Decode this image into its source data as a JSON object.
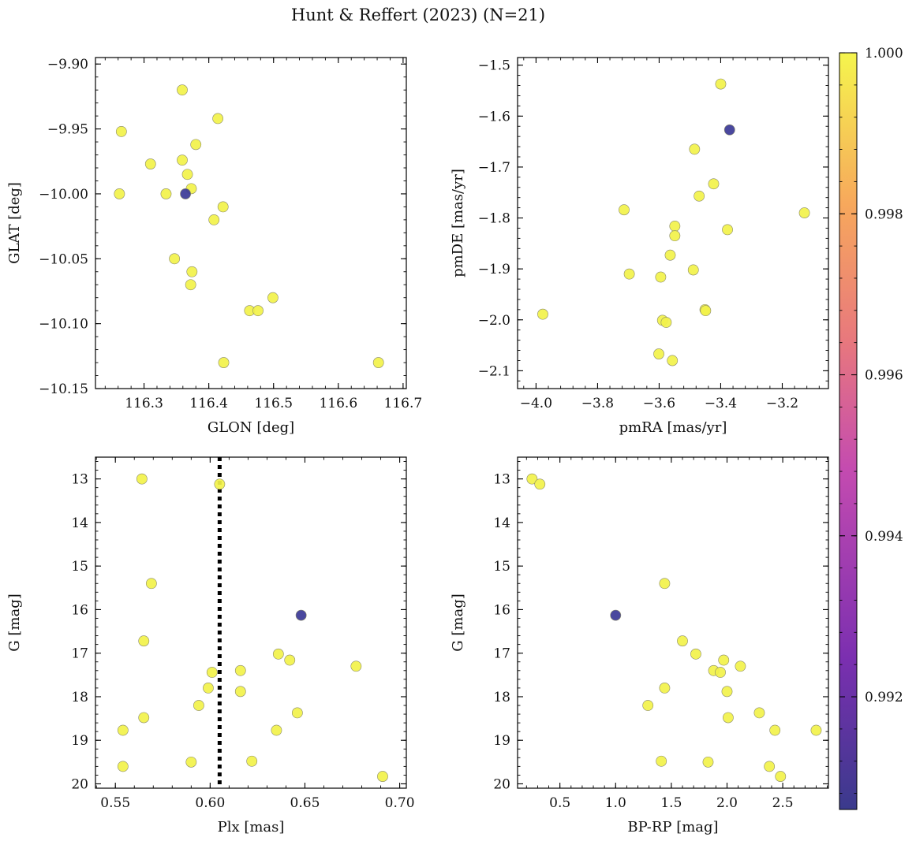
{
  "figure": {
    "title": "Hunt & Reffert (2023) (N=21)"
  },
  "colorbar": {
    "min": 0.9906,
    "max": 1.0,
    "ticks": [
      0.992,
      0.994,
      0.996,
      0.998,
      1.0
    ],
    "tick_labels": [
      "0.992",
      "0.994",
      "0.996",
      "0.998",
      "1.000"
    ],
    "colormap": "plasma",
    "colors": [
      "#0d0887",
      "#7e03a8",
      "#cc4778",
      "#f89540",
      "#f0f921"
    ]
  },
  "chart_data": [
    {
      "id": "glon-glat",
      "type": "scatter",
      "xlabel": "GLON [deg]",
      "ylabel": "GLAT [deg]",
      "xlim": [
        116.225,
        116.705
      ],
      "ylim": [
        -10.15,
        -9.895
      ],
      "invert_y": false,
      "xticks": [
        116.3,
        116.4,
        116.5,
        116.6,
        116.7
      ],
      "xtick_labels": [
        "116.3",
        "116.4",
        "116.5",
        "116.6",
        "116.7"
      ],
      "yticks": [
        -9.9,
        -9.95,
        -10.0,
        -10.05,
        -10.1,
        -10.15
      ],
      "ytick_labels": [
        "−9.90",
        "−9.95",
        "−10.00",
        "−10.05",
        "−10.10",
        "−10.15"
      ],
      "x_minor_step": 0.02,
      "y_minor_step": 0.01,
      "points": [
        {
          "x": 116.262,
          "y": -10.0,
          "c": 1.0
        },
        {
          "x": 116.265,
          "y": -9.952,
          "c": 1.0
        },
        {
          "x": 116.31,
          "y": -9.977,
          "c": 1.0
        },
        {
          "x": 116.334,
          "y": -10.0,
          "c": 1.0
        },
        {
          "x": 116.347,
          "y": -10.05,
          "c": 1.0
        },
        {
          "x": 116.359,
          "y": -9.92,
          "c": 1.0
        },
        {
          "x": 116.359,
          "y": -9.974,
          "c": 1.0
        },
        {
          "x": 116.367,
          "y": -9.985,
          "c": 1.0
        },
        {
          "x": 116.373,
          "y": -9.996,
          "c": 1.0
        },
        {
          "x": 116.374,
          "y": -10.06,
          "c": 1.0
        },
        {
          "x": 116.372,
          "y": -10.07,
          "c": 1.0
        },
        {
          "x": 116.38,
          "y": -9.962,
          "c": 1.0
        },
        {
          "x": 116.408,
          "y": -10.02,
          "c": 1.0
        },
        {
          "x": 116.414,
          "y": -9.942,
          "c": 1.0
        },
        {
          "x": 116.422,
          "y": -10.01,
          "c": 1.0
        },
        {
          "x": 116.423,
          "y": -10.13,
          "c": 1.0
        },
        {
          "x": 116.463,
          "y": -10.09,
          "c": 1.0
        },
        {
          "x": 116.476,
          "y": -10.09,
          "c": 1.0
        },
        {
          "x": 116.499,
          "y": -10.08,
          "c": 1.0
        },
        {
          "x": 116.662,
          "y": -10.13,
          "c": 1.0
        },
        {
          "x": 116.364,
          "y": -10.0,
          "c": 0.9906
        }
      ]
    },
    {
      "id": "pmra-pmde",
      "type": "scatter",
      "xlabel": "pmRA [mas/yr]",
      "ylabel": "pmDE [mas/yr]",
      "xlim": [
        -4.06,
        -3.05
      ],
      "ylim": [
        -2.135,
        -1.485
      ],
      "invert_y": false,
      "xticks": [
        -4.0,
        -3.8,
        -3.6,
        -3.4,
        -3.2
      ],
      "xtick_labels": [
        "−4.0",
        "−3.8",
        "−3.6",
        "−3.4",
        "−3.2"
      ],
      "yticks": [
        -1.5,
        -1.6,
        -1.7,
        -1.8,
        -1.9,
        -2.0,
        -2.1
      ],
      "ytick_labels": [
        "−1.5",
        "−1.6",
        "−1.7",
        "−1.8",
        "−1.9",
        "−2.0",
        "−2.1"
      ],
      "x_minor_step": 0.04,
      "y_minor_step": 0.02,
      "points": [
        {
          "x": -3.4,
          "y": -1.537,
          "c": 1.0
        },
        {
          "x": -3.485,
          "y": -1.665,
          "c": 1.0
        },
        {
          "x": -3.423,
          "y": -1.733,
          "c": 1.0
        },
        {
          "x": -3.47,
          "y": -1.757,
          "c": 1.0
        },
        {
          "x": -3.714,
          "y": -1.784,
          "c": 1.0
        },
        {
          "x": -3.128,
          "y": -1.79,
          "c": 1.0
        },
        {
          "x": -3.549,
          "y": -1.816,
          "c": 1.0
        },
        {
          "x": -3.378,
          "y": -1.823,
          "c": 1.0
        },
        {
          "x": -3.549,
          "y": -1.835,
          "c": 1.0
        },
        {
          "x": -3.564,
          "y": -1.873,
          "c": 1.0
        },
        {
          "x": -3.489,
          "y": -1.902,
          "c": 1.0
        },
        {
          "x": -3.697,
          "y": -1.91,
          "c": 1.0
        },
        {
          "x": -3.595,
          "y": -1.916,
          "c": 1.0
        },
        {
          "x": -3.451,
          "y": -1.98,
          "c": 1.0
        },
        {
          "x": -3.449,
          "y": -1.982,
          "c": 1.0
        },
        {
          "x": -3.978,
          "y": -1.989,
          "c": 1.0
        },
        {
          "x": -3.589,
          "y": -2.001,
          "c": 1.0
        },
        {
          "x": -3.577,
          "y": -2.005,
          "c": 1.0
        },
        {
          "x": -3.601,
          "y": -2.067,
          "c": 1.0
        },
        {
          "x": -3.557,
          "y": -2.08,
          "c": 1.0
        },
        {
          "x": -3.371,
          "y": -1.627,
          "c": 0.9906
        }
      ]
    },
    {
      "id": "plx-g",
      "type": "scatter",
      "xlabel": "Plx [mas]",
      "ylabel": "G [mag]",
      "xlim": [
        0.5395,
        0.7035
      ],
      "ylim": [
        12.5,
        20.1
      ],
      "invert_y": true,
      "xticks": [
        0.55,
        0.6,
        0.65,
        0.7
      ],
      "xtick_labels": [
        "0.55",
        "0.60",
        "0.65",
        "0.70"
      ],
      "yticks": [
        13,
        14,
        15,
        16,
        17,
        18,
        19,
        20
      ],
      "ytick_labels": [
        "13",
        "14",
        "15",
        "16",
        "17",
        "18",
        "19",
        "20"
      ],
      "x_minor_step": 0.01,
      "y_minor_step": 0.2,
      "vline": {
        "x": 0.605,
        "style": "dotted"
      },
      "points": [
        {
          "x": 0.564,
          "y": 13.0,
          "c": 1.0
        },
        {
          "x": 0.605,
          "y": 13.12,
          "c": 1.0
        },
        {
          "x": 0.569,
          "y": 15.4,
          "c": 1.0
        },
        {
          "x": 0.565,
          "y": 16.72,
          "c": 1.0
        },
        {
          "x": 0.636,
          "y": 17.02,
          "c": 1.0
        },
        {
          "x": 0.642,
          "y": 17.16,
          "c": 1.0
        },
        {
          "x": 0.677,
          "y": 17.3,
          "c": 1.0
        },
        {
          "x": 0.616,
          "y": 17.4,
          "c": 1.0
        },
        {
          "x": 0.601,
          "y": 17.44,
          "c": 1.0
        },
        {
          "x": 0.599,
          "y": 17.8,
          "c": 1.0
        },
        {
          "x": 0.616,
          "y": 17.88,
          "c": 1.0
        },
        {
          "x": 0.594,
          "y": 18.2,
          "c": 1.0
        },
        {
          "x": 0.646,
          "y": 18.37,
          "c": 1.0
        },
        {
          "x": 0.565,
          "y": 18.48,
          "c": 1.0
        },
        {
          "x": 0.554,
          "y": 18.77,
          "c": 1.0
        },
        {
          "x": 0.635,
          "y": 18.77,
          "c": 1.0
        },
        {
          "x": 0.59,
          "y": 19.5,
          "c": 1.0
        },
        {
          "x": 0.622,
          "y": 19.48,
          "c": 1.0
        },
        {
          "x": 0.554,
          "y": 19.6,
          "c": 1.0
        },
        {
          "x": 0.691,
          "y": 19.83,
          "c": 1.0
        },
        {
          "x": 0.648,
          "y": 16.13,
          "c": 0.9906
        }
      ]
    },
    {
      "id": "bprp-g",
      "type": "scatter",
      "xlabel": "BP-RP [mag]",
      "ylabel": "G [mag]",
      "xlim": [
        0.12,
        2.91
      ],
      "ylim": [
        12.5,
        20.1
      ],
      "invert_y": true,
      "xticks": [
        0.5,
        1.0,
        1.5,
        2.0,
        2.5
      ],
      "xtick_labels": [
        "0.5",
        "1.0",
        "1.5",
        "2.0",
        "2.5"
      ],
      "yticks": [
        13,
        14,
        15,
        16,
        17,
        18,
        19,
        20
      ],
      "ytick_labels": [
        "13",
        "14",
        "15",
        "16",
        "17",
        "18",
        "19",
        "20"
      ],
      "x_minor_step": 0.1,
      "y_minor_step": 0.2,
      "points": [
        {
          "x": 0.25,
          "y": 13.0,
          "c": 1.0
        },
        {
          "x": 0.32,
          "y": 13.12,
          "c": 1.0
        },
        {
          "x": 1.44,
          "y": 15.4,
          "c": 1.0
        },
        {
          "x": 1.6,
          "y": 16.72,
          "c": 1.0
        },
        {
          "x": 1.72,
          "y": 17.02,
          "c": 1.0
        },
        {
          "x": 1.97,
          "y": 17.16,
          "c": 1.0
        },
        {
          "x": 2.12,
          "y": 17.3,
          "c": 1.0
        },
        {
          "x": 1.88,
          "y": 17.4,
          "c": 1.0
        },
        {
          "x": 1.94,
          "y": 17.44,
          "c": 1.0
        },
        {
          "x": 1.44,
          "y": 17.8,
          "c": 1.0
        },
        {
          "x": 2.0,
          "y": 17.88,
          "c": 1.0
        },
        {
          "x": 1.29,
          "y": 18.2,
          "c": 1.0
        },
        {
          "x": 2.29,
          "y": 18.37,
          "c": 1.0
        },
        {
          "x": 2.01,
          "y": 18.48,
          "c": 1.0
        },
        {
          "x": 2.43,
          "y": 18.77,
          "c": 1.0
        },
        {
          "x": 2.8,
          "y": 18.77,
          "c": 1.0
        },
        {
          "x": 1.41,
          "y": 19.48,
          "c": 1.0
        },
        {
          "x": 1.83,
          "y": 19.5,
          "c": 1.0
        },
        {
          "x": 2.38,
          "y": 19.6,
          "c": 1.0
        },
        {
          "x": 2.48,
          "y": 19.83,
          "c": 1.0
        },
        {
          "x": 1.0,
          "y": 16.13,
          "c": 0.9906
        }
      ]
    }
  ]
}
